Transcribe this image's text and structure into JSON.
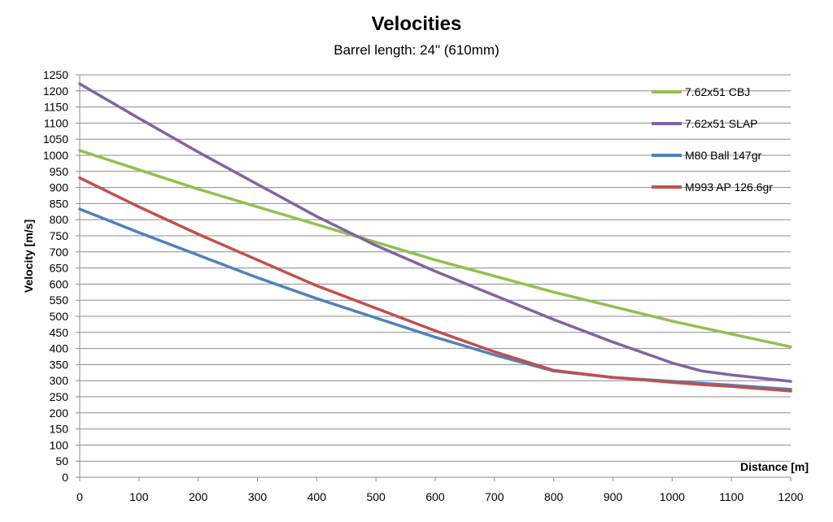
{
  "chart_data": {
    "type": "line",
    "title": "Velocities",
    "subtitle": "Barrel length: 24\" (610mm)",
    "xlabel": "Distance [m]",
    "ylabel": "Velocity [m/s]",
    "xlim": [
      0,
      1200
    ],
    "ylim": [
      0,
      1250
    ],
    "x_ticks": [
      0,
      100,
      200,
      300,
      400,
      500,
      600,
      700,
      800,
      900,
      1000,
      1100,
      1200
    ],
    "y_ticks": [
      0,
      50,
      100,
      150,
      200,
      250,
      300,
      350,
      400,
      450,
      500,
      550,
      600,
      650,
      700,
      750,
      800,
      850,
      900,
      950,
      1000,
      1050,
      1100,
      1150,
      1200,
      1250
    ],
    "grid": "horizontal",
    "legend_position": "right",
    "x": [
      0,
      100,
      200,
      300,
      400,
      500,
      600,
      700,
      800,
      900,
      1000,
      1050,
      1100,
      1200
    ],
    "series": [
      {
        "name": "7.62x51 CBJ",
        "color": "#92c050",
        "values": [
          1015,
          955,
          895,
          840,
          785,
          730,
          675,
          625,
          575,
          530,
          485,
          465,
          445,
          405
        ]
      },
      {
        "name": "7.62x51 SLAP",
        "color": "#8064a2",
        "values": [
          1222,
          1115,
          1010,
          910,
          810,
          720,
          640,
          565,
          490,
          420,
          355,
          330,
          318,
          298
        ]
      },
      {
        "name": "M80 Ball 147gr",
        "color": "#4f81bd",
        "values": [
          833,
          760,
          690,
          620,
          555,
          495,
          435,
          380,
          330,
          310,
          298,
          292,
          286,
          273
        ]
      },
      {
        "name": "M993 AP 126.6gr",
        "color": "#c0504d",
        "values": [
          930,
          840,
          755,
          675,
          595,
          525,
          455,
          390,
          332,
          310,
          295,
          288,
          282,
          268
        ]
      }
    ]
  }
}
